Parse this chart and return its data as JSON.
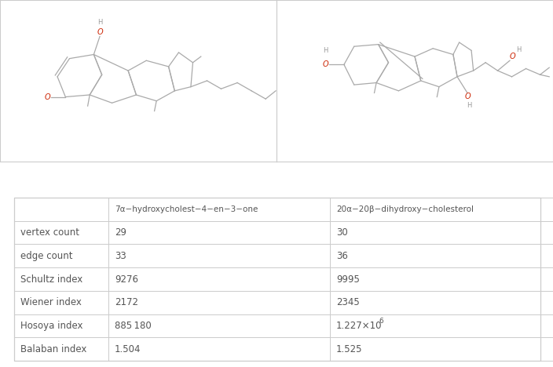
{
  "title1": "7α−hydroxycholest−4−en−3−one",
  "title2": "20α−20β−dihydroxy−cholesterol",
  "col_header1": "7α−hydroxycholest−4−en−3−one",
  "col_header2": "20α−20β−dihydroxy−cholesterol",
  "row_labels": [
    "vertex count",
    "edge count",
    "Schultz index",
    "Wiener index",
    "Hosoya index",
    "Balaban index"
  ],
  "col1_values": [
    "29",
    "33",
    "9276",
    "2172",
    "885 180",
    "1.504"
  ],
  "col2_values": [
    "30",
    "36",
    "9995",
    "2345",
    "1.227×10",
    "1.525"
  ],
  "bg_color": "#ffffff",
  "text_color": "#555555",
  "border_color": "#cccccc",
  "red_color": "#cc2200",
  "gray_color": "#999999",
  "line_color": "#aaaaaa",
  "title_color": "#555555"
}
